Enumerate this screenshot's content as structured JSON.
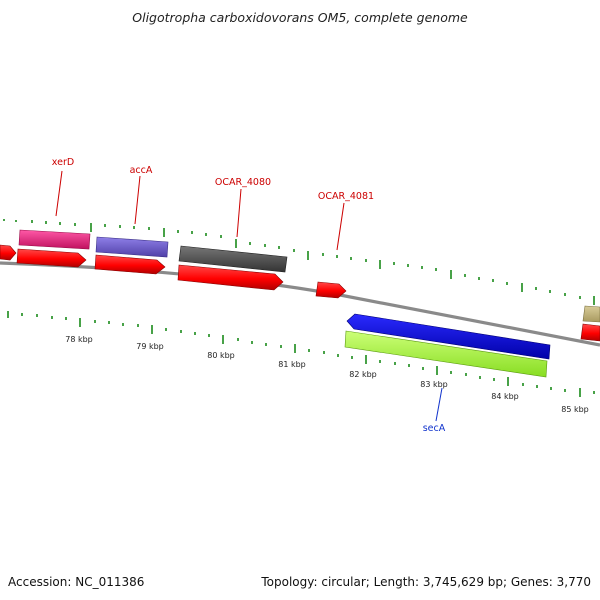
{
  "title": "Oligotropha carboxidovorans OM5, complete genome",
  "footer": {
    "accession": "Accession: NC_011386",
    "summary": "Topology: circular; Length: 3,745,629 bp; Genes: 3,770"
  },
  "kbp_labels": [
    "78 kbp",
    "79 kbp",
    "80 kbp",
    "81 kbp",
    "82 kbp",
    "83 kbp",
    "84 kbp",
    "85 kbp"
  ],
  "gene_labels": [
    "xerD",
    "accA",
    "OCAR_4080",
    "OCAR_4081",
    "secA"
  ],
  "colors": {
    "backbone": "#8a8a8a",
    "cds_forward": "#ff0000",
    "xerD": "#e0207a",
    "accA": "#7060cc",
    "OCAR_4080": "#555555",
    "secA_bar": "#0000dd",
    "lime_bar": "#aaff44",
    "tick": "#1a8a1a",
    "label_red": "#cc0000",
    "label_blue": "#1133cc"
  }
}
